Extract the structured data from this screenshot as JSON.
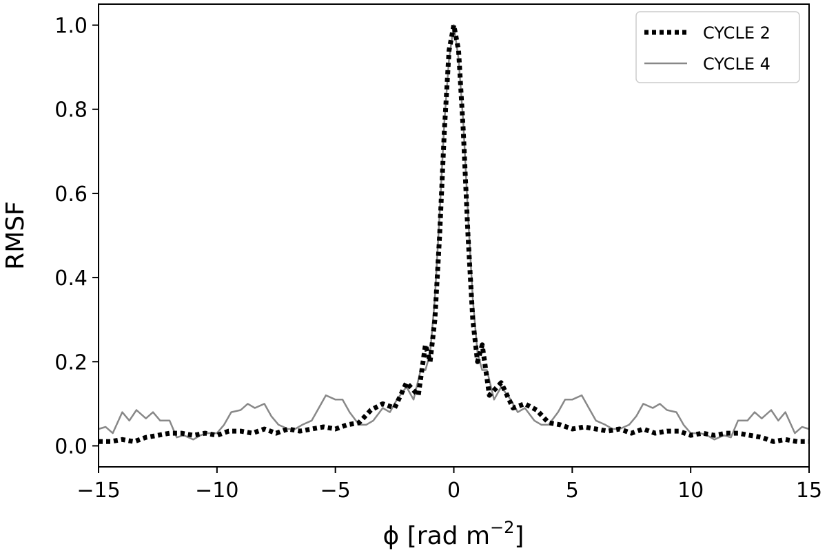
{
  "chart_data": {
    "type": "line",
    "title": "",
    "xlabel": "ϕ [rad m",
    "xlabel_superscript": "−2",
    "xlabel_suffix": "]",
    "ylabel": "RMSF",
    "xlim": [
      -15,
      15
    ],
    "ylim": [
      -0.05,
      1.05
    ],
    "xticks": [
      -15,
      -10,
      -5,
      0,
      5,
      10,
      15
    ],
    "xtick_labels": [
      "−15",
      "−10",
      "−5",
      "0",
      "5",
      "10",
      "15"
    ],
    "yticks": [
      0.0,
      0.2,
      0.4,
      0.6,
      0.8,
      1.0
    ],
    "ytick_labels": [
      "0.0",
      "0.2",
      "0.4",
      "0.6",
      "0.8",
      "1.0"
    ],
    "grid": false,
    "legend_position": "top-right",
    "series": [
      {
        "name": "CYCLE 2",
        "color": "#000000",
        "style": "dotted",
        "x": [
          -15,
          -14.5,
          -14,
          -13.5,
          -13,
          -12.5,
          -12,
          -11.5,
          -11,
          -10.5,
          -10,
          -9.5,
          -9,
          -8.5,
          -8,
          -7.5,
          -7,
          -6.5,
          -6,
          -5.5,
          -5,
          -4.5,
          -4,
          -3.5,
          -3,
          -2.5,
          -2,
          -1.5,
          -1.2,
          -1,
          -0.8,
          -0.6,
          -0.4,
          -0.2,
          0,
          0.2,
          0.4,
          0.6,
          0.8,
          1,
          1.2,
          1.5,
          2,
          2.5,
          3,
          3.5,
          4,
          4.5,
          5,
          5.5,
          6,
          6.5,
          7,
          7.5,
          8,
          8.5,
          9,
          9.5,
          10,
          10.5,
          11,
          11.5,
          12,
          12.5,
          13,
          13.5,
          14,
          14.5,
          15
        ],
        "y": [
          0.01,
          0.01,
          0.015,
          0.01,
          0.02,
          0.025,
          0.03,
          0.03,
          0.025,
          0.03,
          0.025,
          0.035,
          0.035,
          0.03,
          0.04,
          0.03,
          0.04,
          0.035,
          0.04,
          0.045,
          0.04,
          0.05,
          0.055,
          0.085,
          0.1,
          0.09,
          0.15,
          0.12,
          0.24,
          0.2,
          0.3,
          0.5,
          0.75,
          0.94,
          1.0,
          0.94,
          0.75,
          0.5,
          0.3,
          0.2,
          0.24,
          0.12,
          0.15,
          0.09,
          0.1,
          0.085,
          0.055,
          0.05,
          0.04,
          0.045,
          0.04,
          0.035,
          0.04,
          0.03,
          0.04,
          0.03,
          0.035,
          0.035,
          0.025,
          0.03,
          0.025,
          0.03,
          0.03,
          0.025,
          0.02,
          0.01,
          0.015,
          0.01,
          0.01
        ]
      },
      {
        "name": "CYCLE 4",
        "color": "#888888",
        "style": "solid",
        "x": [
          -15,
          -14.7,
          -14.4,
          -14,
          -13.7,
          -13.4,
          -13,
          -12.7,
          -12.4,
          -12,
          -11.7,
          -11.4,
          -11,
          -10.7,
          -10.4,
          -10,
          -9.7,
          -9.4,
          -9,
          -8.7,
          -8.4,
          -8,
          -7.7,
          -7.4,
          -7,
          -6.7,
          -6.4,
          -6,
          -5.7,
          -5.4,
          -5,
          -4.7,
          -4.4,
          -4,
          -3.7,
          -3.4,
          -3,
          -2.7,
          -2.4,
          -2,
          -1.7,
          -1.4,
          -1.2,
          -1,
          -0.8,
          -0.6,
          -0.4,
          -0.2,
          0,
          0.2,
          0.4,
          0.6,
          0.8,
          1,
          1.2,
          1.4,
          1.7,
          2,
          2.4,
          2.7,
          3,
          3.4,
          3.7,
          4,
          4.4,
          4.7,
          5,
          5.4,
          5.7,
          6,
          6.4,
          6.7,
          7,
          7.4,
          7.7,
          8,
          8.4,
          8.7,
          9,
          9.4,
          9.7,
          10,
          10.4,
          10.7,
          11,
          11.4,
          11.7,
          12,
          12.4,
          12.7,
          13,
          13.4,
          13.7,
          14,
          14.4,
          14.7,
          15
        ],
        "y": [
          0.04,
          0.045,
          0.03,
          0.08,
          0.06,
          0.085,
          0.065,
          0.08,
          0.06,
          0.06,
          0.02,
          0.025,
          0.015,
          0.025,
          0.03,
          0.03,
          0.05,
          0.08,
          0.085,
          0.1,
          0.09,
          0.1,
          0.07,
          0.05,
          0.04,
          0.04,
          0.05,
          0.06,
          0.09,
          0.12,
          0.11,
          0.11,
          0.08,
          0.05,
          0.05,
          0.06,
          0.09,
          0.08,
          0.11,
          0.14,
          0.11,
          0.18,
          0.18,
          0.22,
          0.35,
          0.55,
          0.77,
          0.92,
          1.0,
          0.92,
          0.77,
          0.55,
          0.35,
          0.22,
          0.18,
          0.18,
          0.11,
          0.14,
          0.11,
          0.08,
          0.09,
          0.06,
          0.05,
          0.05,
          0.08,
          0.11,
          0.11,
          0.12,
          0.09,
          0.06,
          0.05,
          0.04,
          0.04,
          0.05,
          0.07,
          0.1,
          0.09,
          0.1,
          0.085,
          0.08,
          0.05,
          0.03,
          0.03,
          0.025,
          0.015,
          0.025,
          0.02,
          0.06,
          0.06,
          0.08,
          0.065,
          0.085,
          0.06,
          0.08,
          0.03,
          0.045,
          0.04
        ]
      }
    ]
  }
}
